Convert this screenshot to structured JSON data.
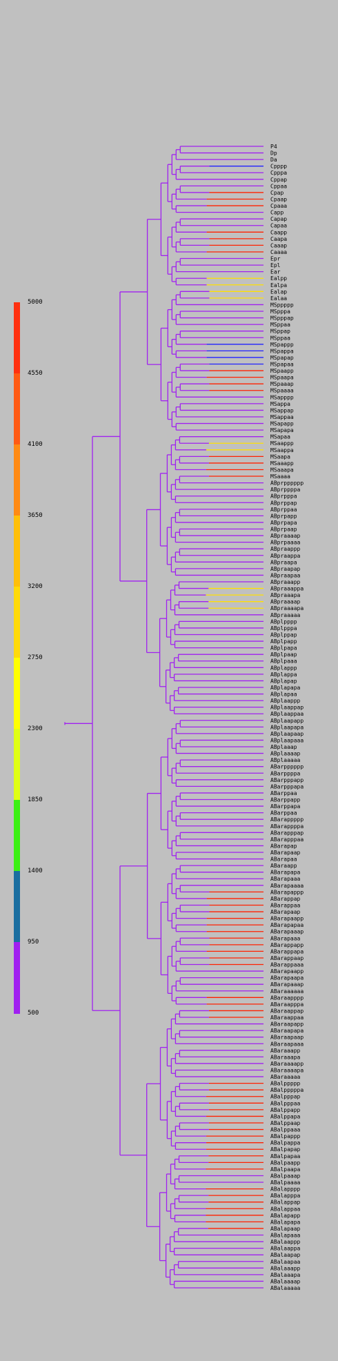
{
  "legend": {
    "ticks": [
      "5000",
      "4550",
      "4100",
      "3650",
      "3200",
      "2750",
      "2300",
      "1850",
      "1400",
      "950",
      "500"
    ],
    "colors": [
      "#ff3010",
      "#ff5a14",
      "#ff8a14",
      "#ffbf0a",
      "#ffda0a",
      "#ffff00",
      "#e0ff14",
      "#3cf014",
      "#1a6ea0",
      "#a020f0"
    ]
  },
  "tree": {
    "branch_color": "#a020f0",
    "leaves": [
      {
        "label": "P4",
        "accent": ""
      },
      {
        "label": "Dp",
        "accent": ""
      },
      {
        "label": "Da",
        "accent": ""
      },
      {
        "label": "Cpppp",
        "accent": "blue"
      },
      {
        "label": "Cpppa",
        "accent": ""
      },
      {
        "label": "Cppap",
        "accent": ""
      },
      {
        "label": "Cppaa",
        "accent": ""
      },
      {
        "label": "Cpap",
        "accent": "red"
      },
      {
        "label": "Cpaap",
        "accent": "red"
      },
      {
        "label": "Cpaaa",
        "accent": "red"
      },
      {
        "label": "Capp",
        "accent": ""
      },
      {
        "label": "Capap",
        "accent": ""
      },
      {
        "label": "Capaa",
        "accent": ""
      },
      {
        "label": "Caapp",
        "accent": "red"
      },
      {
        "label": "Caapa",
        "accent": "red"
      },
      {
        "label": "Caaap",
        "accent": "red"
      },
      {
        "label": "Caaaa",
        "accent": "red"
      },
      {
        "label": "Epr",
        "accent": ""
      },
      {
        "label": "Epl",
        "accent": ""
      },
      {
        "label": "Ear",
        "accent": ""
      },
      {
        "label": "Ealpp",
        "accent": "yellow"
      },
      {
        "label": "Ealpa",
        "accent": "yellow"
      },
      {
        "label": "Ealap",
        "accent": "yellow"
      },
      {
        "label": "Ealaa",
        "accent": "yellow"
      },
      {
        "label": "MSppppp",
        "accent": ""
      },
      {
        "label": "MSpppa",
        "accent": ""
      },
      {
        "label": "MSpppap",
        "accent": ""
      },
      {
        "label": "MSppaa",
        "accent": ""
      },
      {
        "label": "MSppap",
        "accent": ""
      },
      {
        "label": "MSppaa",
        "accent": ""
      },
      {
        "label": "MSpappp",
        "accent": "blue"
      },
      {
        "label": "MSpappa",
        "accent": "blue"
      },
      {
        "label": "MSpapap",
        "accent": "blue"
      },
      {
        "label": "MSpapaa",
        "accent": "blue"
      },
      {
        "label": "MSpaapp",
        "accent": "red"
      },
      {
        "label": "MSpaapa",
        "accent": "red"
      },
      {
        "label": "MSpaaap",
        "accent": "red"
      },
      {
        "label": "MSpaaaa",
        "accent": "red"
      },
      {
        "label": "MSapppp",
        "accent": ""
      },
      {
        "label": "MSappa",
        "accent": ""
      },
      {
        "label": "MSappap",
        "accent": ""
      },
      {
        "label": "MSappaa",
        "accent": ""
      },
      {
        "label": "MSapapp",
        "accent": ""
      },
      {
        "label": "MSapapa",
        "accent": ""
      },
      {
        "label": "MSapaa",
        "accent": ""
      },
      {
        "label": "MSaappp",
        "accent": "yellow"
      },
      {
        "label": "MSaappa",
        "accent": "yellow"
      },
      {
        "label": "MSaapa",
        "accent": "red"
      },
      {
        "label": "MSaaapp",
        "accent": "red"
      },
      {
        "label": "MSaaapa",
        "accent": "red"
      },
      {
        "label": "MSaaaa",
        "accent": "red"
      },
      {
        "label": "ABprpppppp",
        "accent": ""
      },
      {
        "label": "ABprppppa",
        "accent": ""
      },
      {
        "label": "ABprpppa",
        "accent": ""
      },
      {
        "label": "ABprppap",
        "accent": ""
      },
      {
        "label": "ABprppaa",
        "accent": ""
      },
      {
        "label": "ABprpapp",
        "accent": ""
      },
      {
        "label": "ABprpapa",
        "accent": ""
      },
      {
        "label": "ABprpaap",
        "accent": ""
      },
      {
        "label": "ABpraaaap",
        "accent": ""
      },
      {
        "label": "ABprpaaaa",
        "accent": ""
      },
      {
        "label": "ABpraappp",
        "accent": ""
      },
      {
        "label": "ABpraappa",
        "accent": ""
      },
      {
        "label": "ABpraapa",
        "accent": ""
      },
      {
        "label": "ABpraapap",
        "accent": ""
      },
      {
        "label": "ABpraapaa",
        "accent": ""
      },
      {
        "label": "ABpraaapp",
        "accent": ""
      },
      {
        "label": "ABpraaappa",
        "accent": "yellow"
      },
      {
        "label": "ABpraaapa",
        "accent": "yellow"
      },
      {
        "label": "ABpraaaap",
        "accent": "yellow"
      },
      {
        "label": "ABpraaaapa",
        "accent": "yellow"
      },
      {
        "label": "ABpraaaaa",
        "accent": ""
      },
      {
        "label": "ABplpppp",
        "accent": ""
      },
      {
        "label": "ABplpppa",
        "accent": ""
      },
      {
        "label": "ABplppap",
        "accent": ""
      },
      {
        "label": "ABplpapp",
        "accent": ""
      },
      {
        "label": "ABplpapa",
        "accent": ""
      },
      {
        "label": "ABplpaap",
        "accent": ""
      },
      {
        "label": "ABplpaaa",
        "accent": ""
      },
      {
        "label": "ABplappp",
        "accent": ""
      },
      {
        "label": "ABplappa",
        "accent": ""
      },
      {
        "label": "ABplapap",
        "accent": ""
      },
      {
        "label": "ABplapapa",
        "accent": ""
      },
      {
        "label": "ABplapaa",
        "accent": ""
      },
      {
        "label": "ABplaappp",
        "accent": ""
      },
      {
        "label": "ABplaappap",
        "accent": ""
      },
      {
        "label": "ABplaappaa",
        "accent": ""
      },
      {
        "label": "ABplaapapp",
        "accent": ""
      },
      {
        "label": "ABplaapapa",
        "accent": ""
      },
      {
        "label": "ABplaapaap",
        "accent": ""
      },
      {
        "label": "ABplaapaaa",
        "accent": ""
      },
      {
        "label": "ABplaaap",
        "accent": ""
      },
      {
        "label": "ABplaaaap",
        "accent": ""
      },
      {
        "label": "ABplaaaaa",
        "accent": ""
      },
      {
        "label": "ABarpppppp",
        "accent": ""
      },
      {
        "label": "ABarppppa",
        "accent": ""
      },
      {
        "label": "ABarpppapp",
        "accent": ""
      },
      {
        "label": "ABarpppapa",
        "accent": ""
      },
      {
        "label": "ABarppaa",
        "accent": ""
      },
      {
        "label": "ABarppapp",
        "accent": ""
      },
      {
        "label": "ABarppapa",
        "accent": ""
      },
      {
        "label": "ABarppaa",
        "accent": ""
      },
      {
        "label": "ABarappppp",
        "accent": ""
      },
      {
        "label": "ABarappppa",
        "accent": ""
      },
      {
        "label": "ABarapppap",
        "accent": ""
      },
      {
        "label": "ABarapppaa",
        "accent": ""
      },
      {
        "label": "ABarapap",
        "accent": ""
      },
      {
        "label": "ABarapaap",
        "accent": ""
      },
      {
        "label": "ABarapaa",
        "accent": ""
      },
      {
        "label": "ABaraapp",
        "accent": ""
      },
      {
        "label": "ABarapapa",
        "accent": ""
      },
      {
        "label": "ABarapaaa",
        "accent": ""
      },
      {
        "label": "ABarapaaaa",
        "accent": ""
      },
      {
        "label": "ABarapappp",
        "accent": "red"
      },
      {
        "label": "ABarappap",
        "accent": "red"
      },
      {
        "label": "ABarappaa",
        "accent": "red"
      },
      {
        "label": "ABarapaap",
        "accent": "red"
      },
      {
        "label": "ABarapaapp",
        "accent": "red"
      },
      {
        "label": "ABarapapaa",
        "accent": "red"
      },
      {
        "label": "ABarapaaap",
        "accent": "red"
      },
      {
        "label": "ABarapaaa",
        "accent": "red"
      },
      {
        "label": "ABarappapp",
        "accent": "red"
      },
      {
        "label": "ABarappapa",
        "accent": "red"
      },
      {
        "label": "ABarappaap",
        "accent": "red"
      },
      {
        "label": "ABarappaaa",
        "accent": "red"
      },
      {
        "label": "ABarapaapp",
        "accent": ""
      },
      {
        "label": "ABarapaapa",
        "accent": ""
      },
      {
        "label": "ABarapaaap",
        "accent": ""
      },
      {
        "label": "ABaraaaaaa",
        "accent": ""
      },
      {
        "label": "ABaraapppp",
        "accent": "red"
      },
      {
        "label": "ABaraapppa",
        "accent": "red"
      },
      {
        "label": "ABaraappap",
        "accent": "red"
      },
      {
        "label": "ABaraappaa",
        "accent": "red"
      },
      {
        "label": "ABaraapapp",
        "accent": ""
      },
      {
        "label": "ABaraapapa",
        "accent": ""
      },
      {
        "label": "ABaraapaap",
        "accent": ""
      },
      {
        "label": "ABaraapaaa",
        "accent": ""
      },
      {
        "label": "ABaraaapp",
        "accent": ""
      },
      {
        "label": "ABaraaapa",
        "accent": ""
      },
      {
        "label": "ABaraaaapp",
        "accent": ""
      },
      {
        "label": "ABaraaaapa",
        "accent": ""
      },
      {
        "label": "ABaraaaaa",
        "accent": ""
      },
      {
        "label": "ABalppppp",
        "accent": "red"
      },
      {
        "label": "ABalpppppa",
        "accent": "red"
      },
      {
        "label": "ABalpppap",
        "accent": "red"
      },
      {
        "label": "ABalpppaa",
        "accent": "red"
      },
      {
        "label": "ABalppapp",
        "accent": "red"
      },
      {
        "label": "ABalppapa",
        "accent": "red"
      },
      {
        "label": "ABalppaap",
        "accent": "red"
      },
      {
        "label": "ABalppaaa",
        "accent": "red"
      },
      {
        "label": "ABalpappp",
        "accent": "red"
      },
      {
        "label": "ABalpappa",
        "accent": "red"
      },
      {
        "label": "ABalpapap",
        "accent": "red"
      },
      {
        "label": "ABalpapaa",
        "accent": "red"
      },
      {
        "label": "ABalpaapp",
        "accent": "red"
      },
      {
        "label": "ABalpaapa",
        "accent": "red"
      },
      {
        "label": "ABalpaaap",
        "accent": ""
      },
      {
        "label": "ABalpaaaa",
        "accent": ""
      },
      {
        "label": "ABalapppp",
        "accent": "red"
      },
      {
        "label": "ABalapppa",
        "accent": "red"
      },
      {
        "label": "ABalappap",
        "accent": "red"
      },
      {
        "label": "ABalappaa",
        "accent": "red"
      },
      {
        "label": "ABalapapp",
        "accent": "red"
      },
      {
        "label": "ABalapapa",
        "accent": "red"
      },
      {
        "label": "ABalapaap",
        "accent": "red"
      },
      {
        "label": "ABalapaaa",
        "accent": ""
      },
      {
        "label": "ABalaappp",
        "accent": ""
      },
      {
        "label": "ABalaappa",
        "accent": ""
      },
      {
        "label": "ABalaapap",
        "accent": ""
      },
      {
        "label": "ABalaapaa",
        "accent": ""
      },
      {
        "label": "ABalaaapp",
        "accent": ""
      },
      {
        "label": "ABalaaapa",
        "accent": ""
      },
      {
        "label": "ABalaaaap",
        "accent": ""
      },
      {
        "label": "ABalaaaaa",
        "accent": ""
      }
    ]
  }
}
